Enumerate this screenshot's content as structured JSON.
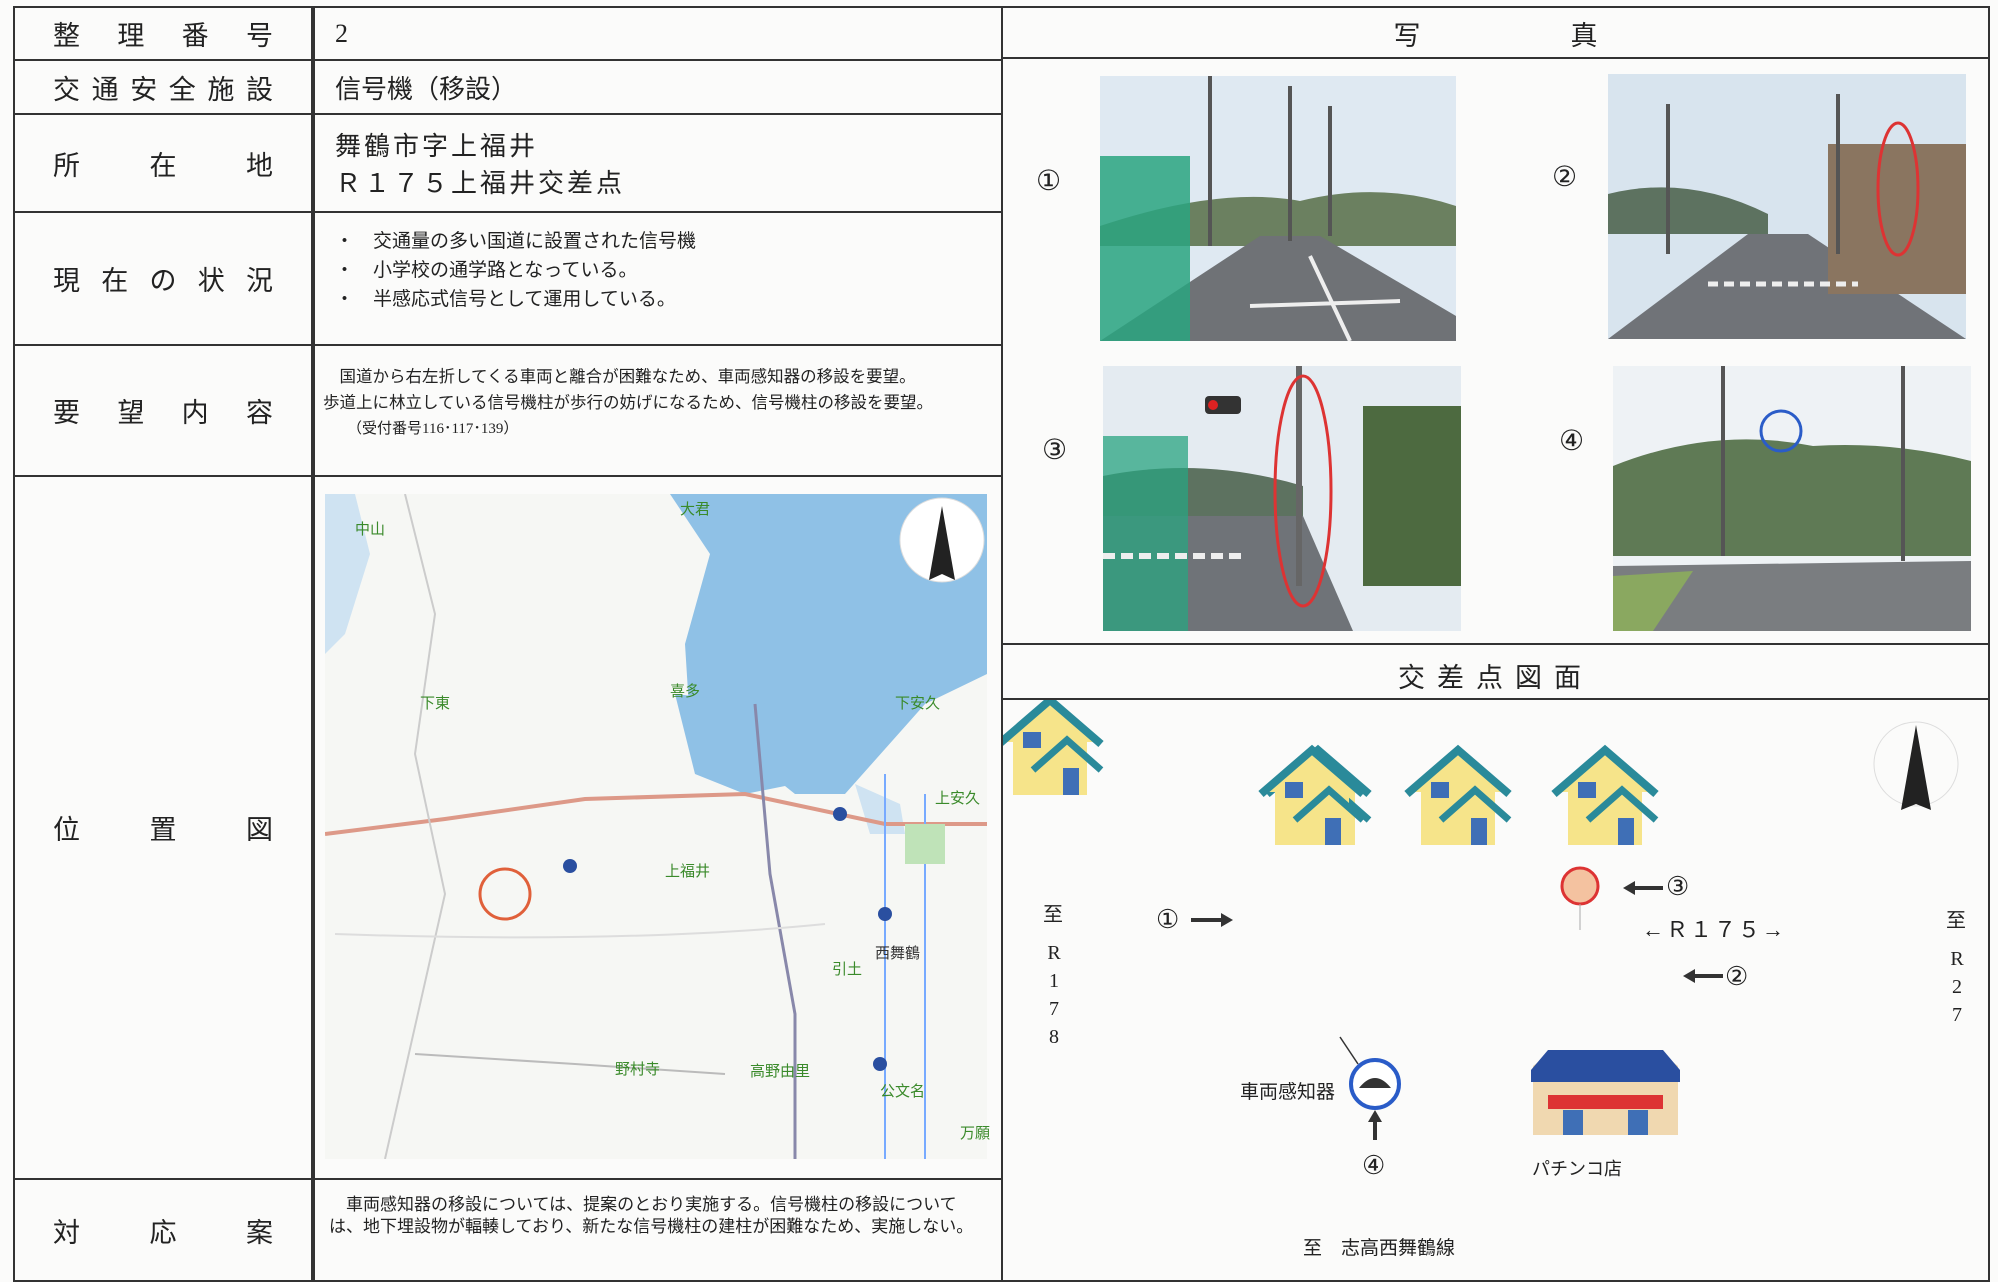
{
  "table": {
    "rows": [
      {
        "label": "整理番号",
        "value": 2
      },
      {
        "label": "交通安全施設",
        "value": "信号機（移設）"
      },
      {
        "label": "所在地",
        "lines": [
          "舞鶴市字上福井",
          "Ｒ１７５上福井交差点"
        ]
      },
      {
        "label": "現在の状況",
        "items": [
          "・　交通量の多い国道に設置された信号機",
          "・　小学校の通学路となっている。",
          "・　半感応式信号として運用している。"
        ]
      },
      {
        "label": "要望内容",
        "lines": [
          "国道から右左折してくる車両と離合が困難なため、車両感知器の移設を要望。",
          "歩道上に林立している信号機柱が歩行の妨げになるため、信号機柱の移設を要望。"
        ],
        "note": "（受付番号116･117･139）"
      },
      {
        "label": "位置図"
      },
      {
        "label": "対応案",
        "text": "車両感知器の移設については、提案のとおり実施する。信号機柱の移設については、地下埋設物が輻輳しており、新たな信号機柱の建柱が困難なため、実施しない。"
      }
    ]
  },
  "photos": {
    "title": "写真",
    "labels": [
      "①",
      "②",
      "③",
      "④"
    ]
  },
  "map": {
    "labels": [
      "中山",
      "大君",
      "喜多",
      "下東",
      "下安久",
      "上安久",
      "上福井",
      "西舞鶴",
      "引土",
      "野村寺",
      "高野由里",
      "公文名",
      "万願"
    ]
  },
  "diagram": {
    "title": "交差点図面",
    "west_to": "至",
    "west_road": "R178",
    "east_to": "至",
    "east_road": "R27",
    "road": "←Ｒ１７５→",
    "markers": [
      "①",
      "②",
      "③",
      "④"
    ],
    "detector": "車両感知器",
    "shop": "パチンコ店",
    "south": "至　志高西舞鶴線"
  }
}
